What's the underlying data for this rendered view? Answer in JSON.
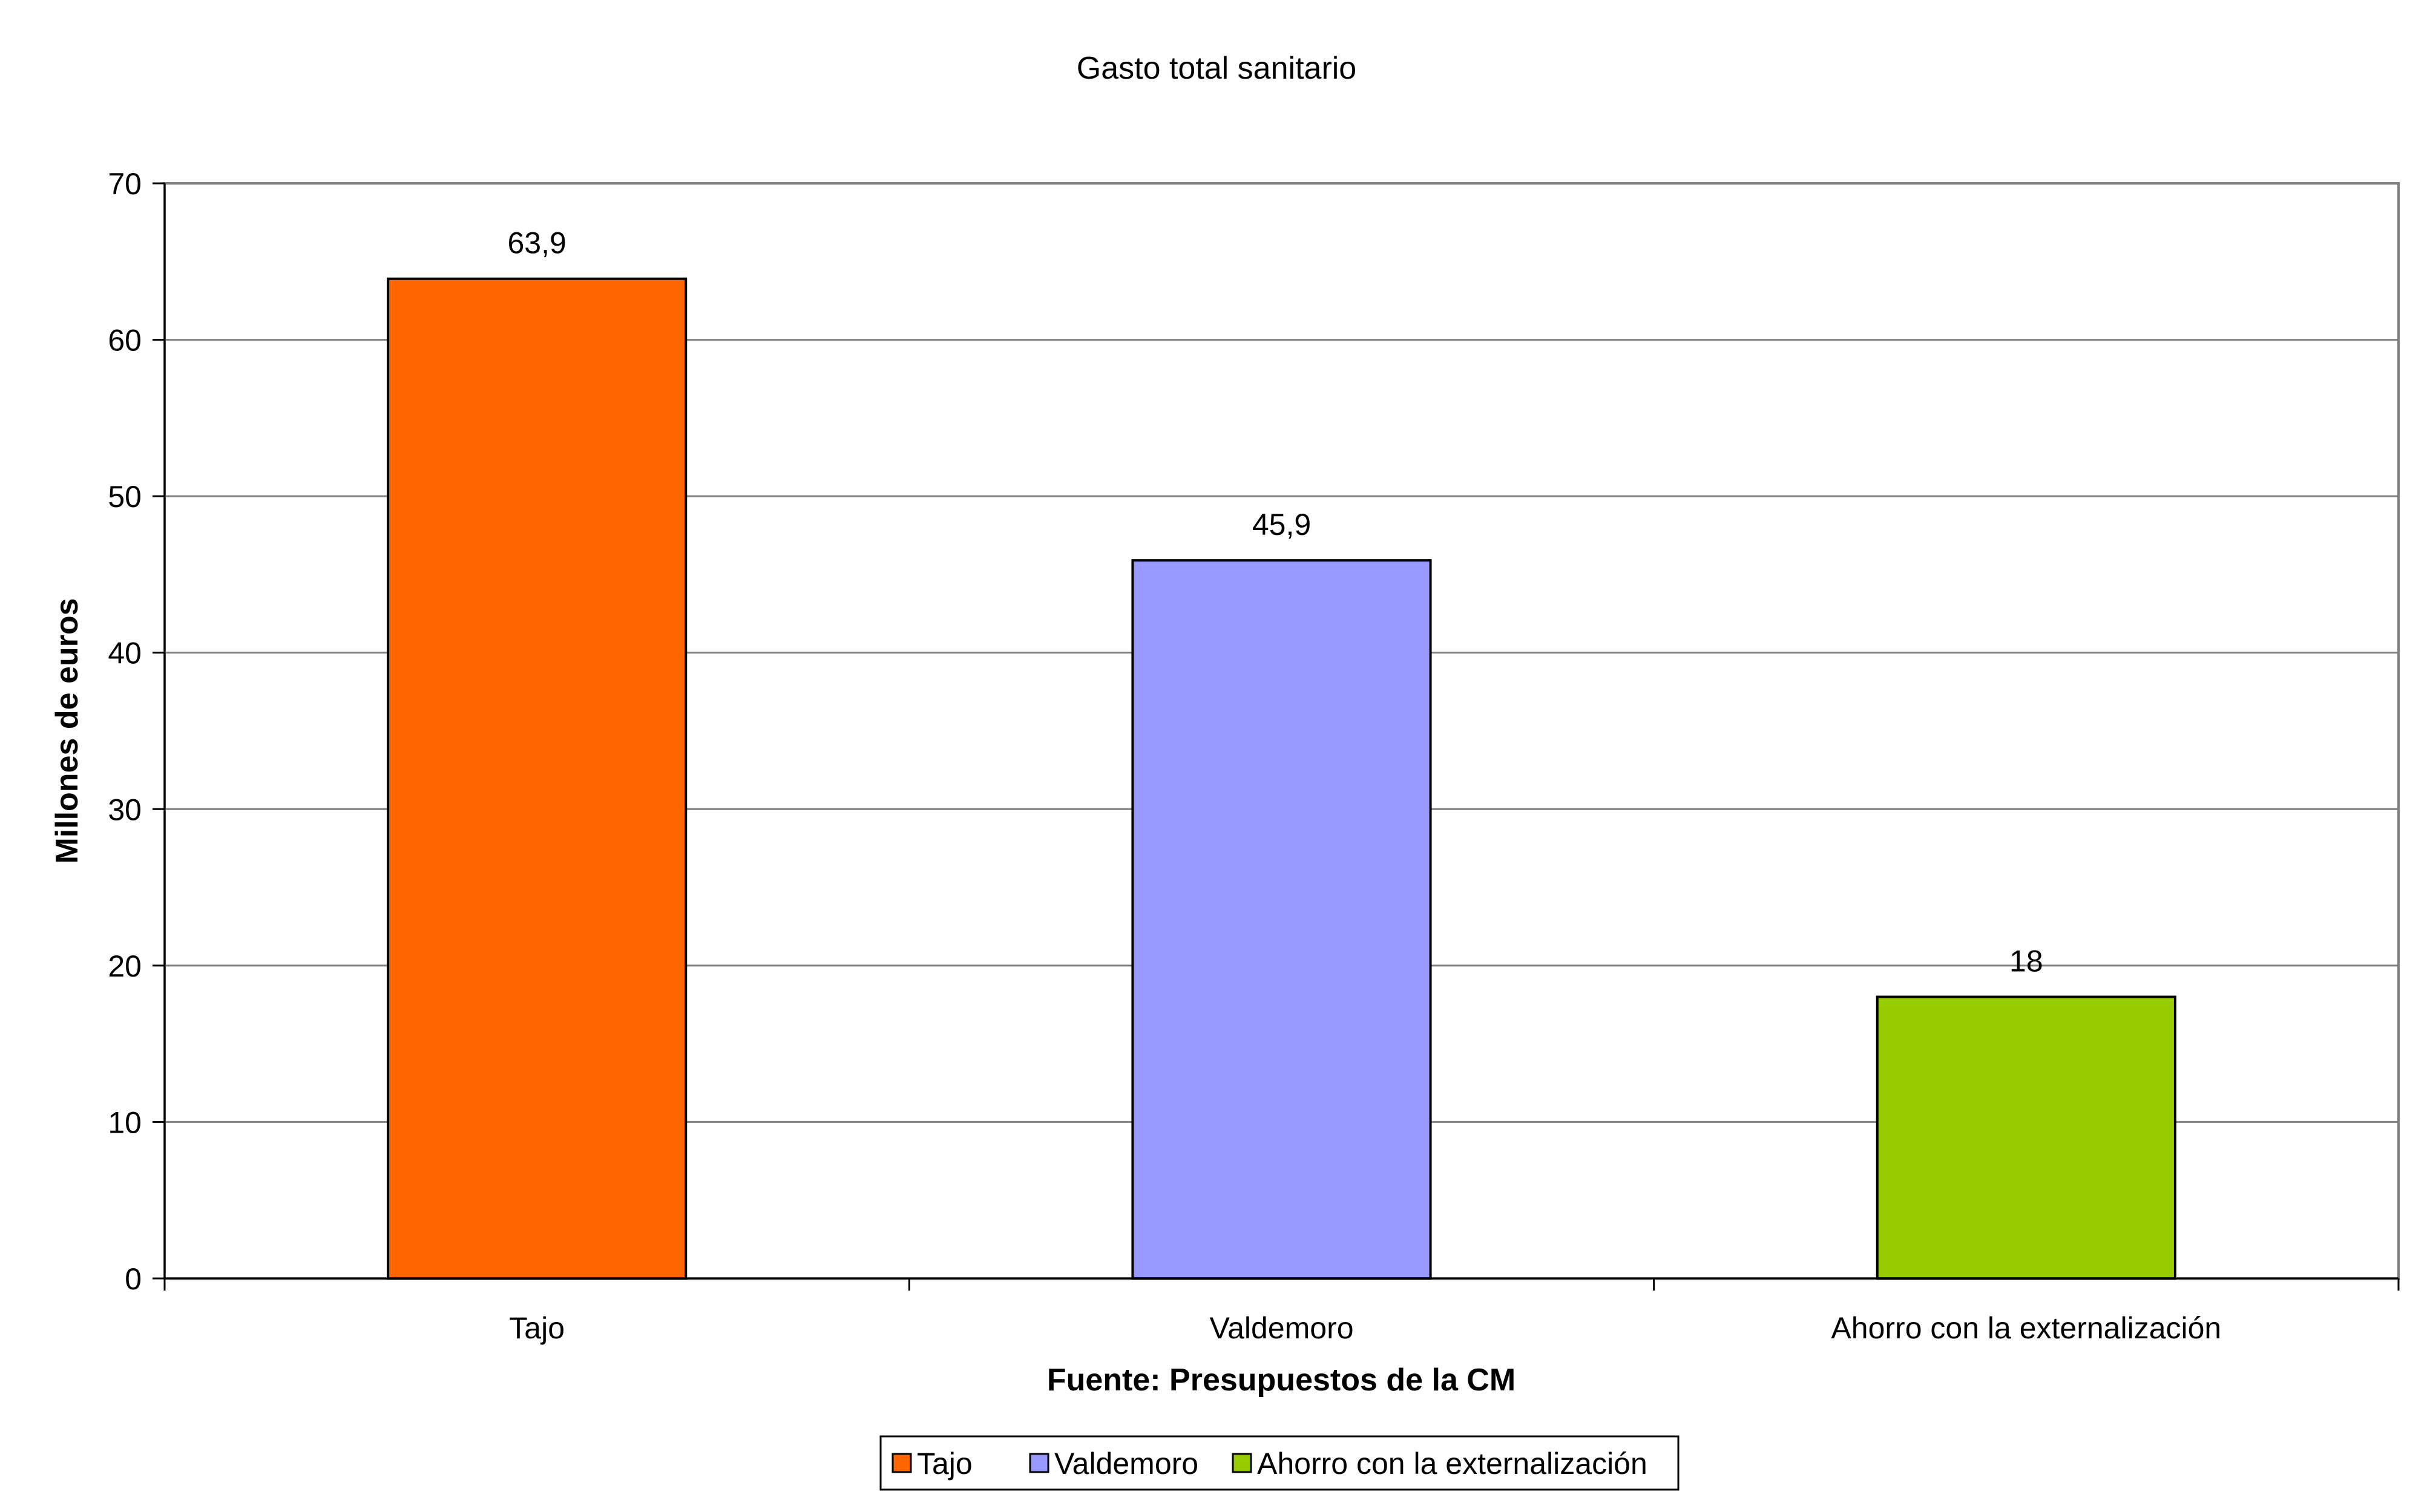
{
  "chart_data": {
    "type": "bar",
    "title": "Gasto total sanitario",
    "xlabel": "Fuente: Presupuestos de la CM",
    "ylabel": "Millones de euros",
    "ylim": [
      0,
      70
    ],
    "ytick_step": 10,
    "yticks": [
      "0",
      "10",
      "20",
      "30",
      "40",
      "50",
      "60",
      "70"
    ],
    "categories": [
      "Tajo",
      "Valdemoro",
      "Ahorro con la externalización"
    ],
    "values": [
      63.9,
      45.9,
      18
    ],
    "data_labels": [
      "63,9",
      "45,9",
      "18"
    ],
    "colors": [
      "#ff6600",
      "#9999ff",
      "#99cc00"
    ],
    "grid": true,
    "legend": {
      "placement": "bottom",
      "entries": [
        "Tajo",
        "Valdemoro",
        "Ahorro con la externalización"
      ]
    }
  }
}
